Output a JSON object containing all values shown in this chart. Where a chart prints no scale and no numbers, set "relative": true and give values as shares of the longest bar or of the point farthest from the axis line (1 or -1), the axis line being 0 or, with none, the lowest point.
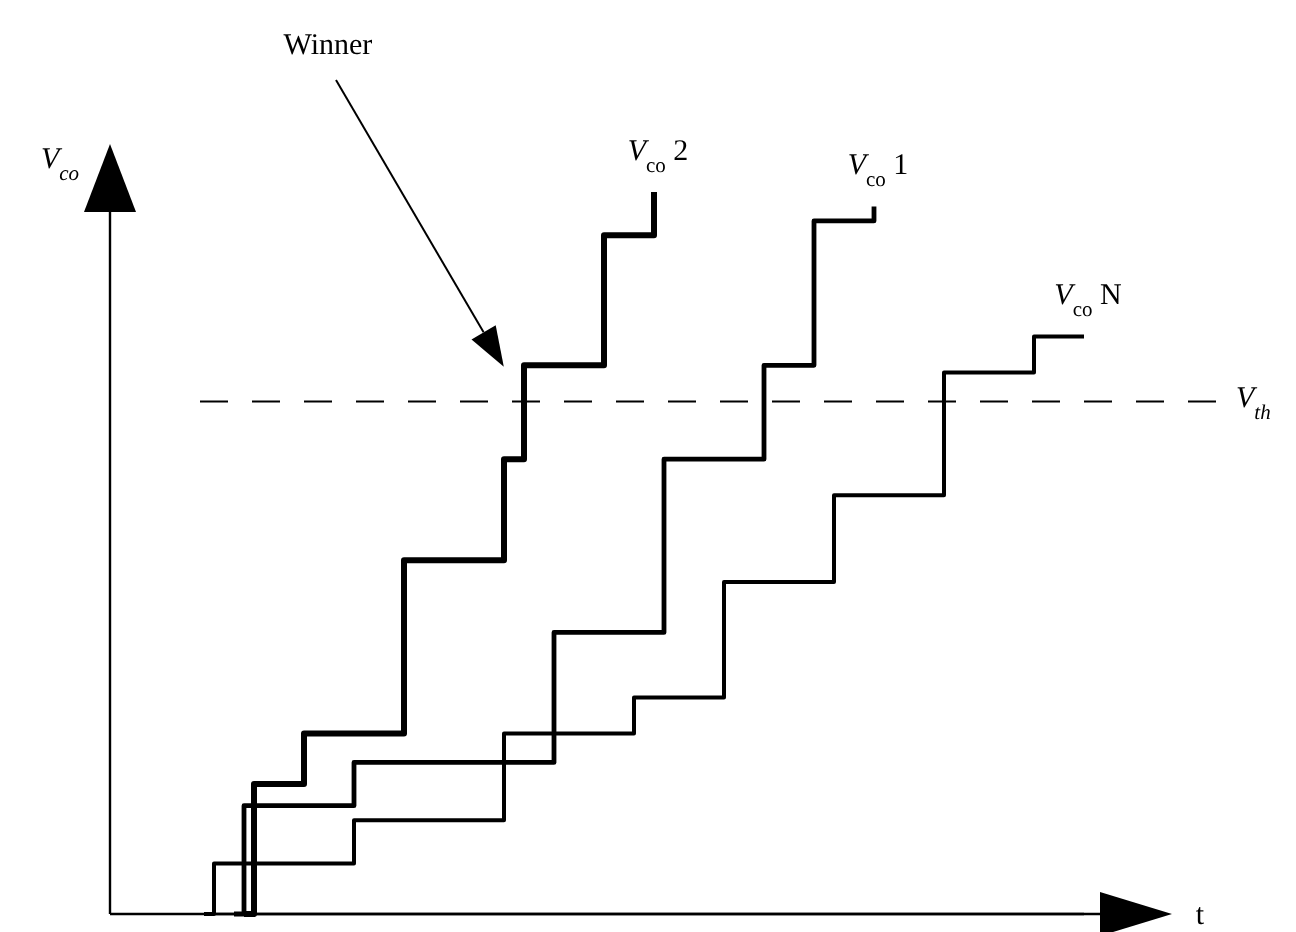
{
  "chart_data": {
    "type": "step",
    "relative": true,
    "xlabel": "t",
    "ylabel": "V$_{co}$",
    "categories": [
      null,
      null,
      null,
      null,
      null,
      null,
      null,
      null,
      null,
      null,
      null,
      null,
      null,
      null,
      null,
      null,
      null,
      null,
      null,
      null,
      null,
      null,
      null,
      null,
      null,
      null,
      null,
      null,
      null,
      null,
      null,
      null,
      null,
      null,
      null,
      null,
      null,
      null,
      null,
      null,
      null,
      null,
      null,
      null,
      null,
      null,
      null,
      null,
      null,
      null,
      null,
      null,
      null,
      null,
      null,
      null,
      null,
      null,
      null,
      null,
      null,
      null,
      null,
      null,
      null,
      null,
      null,
      null,
      null,
      null,
      null,
      null,
      null,
      null,
      null,
      null,
      null,
      null,
      null,
      null,
      null,
      null,
      null,
      null,
      null,
      null,
      null,
      null,
      null
    ],
    "series": [
      {
        "name": "V$_{co}$ 2",
        "color": "#000000",
        "values": [
          null,
          null,
          null,
          null,
          0,
          0.18,
          0.18,
          0.18,
          0.18,
          0.18,
          0.25,
          0.25,
          0.25,
          0.25,
          0.25,
          0.25,
          0.25,
          0.25,
          0.25,
          0.25,
          0.49,
          0.49,
          0.49,
          0.49,
          0.49,
          0.49,
          0.49,
          0.49,
          0.49,
          0.49,
          0.63,
          0.63,
          0.76,
          0.76,
          0.76,
          0.76,
          0.76,
          0.76,
          0.76,
          0.76,
          0.94,
          0.94,
          0.94,
          0.94,
          0.94,
          1,
          null,
          null,
          null,
          null,
          null,
          null,
          null,
          null,
          null,
          null,
          null,
          null,
          null,
          null,
          null,
          null,
          null,
          null,
          null,
          null,
          null,
          null,
          null,
          null,
          null,
          null,
          null,
          null,
          null,
          null,
          null,
          null,
          null,
          null,
          null,
          null,
          null,
          null,
          null,
          null,
          null,
          null,
          null
        ]
      },
      {
        "name": "V$_{co}$ 1",
        "color": "#000000",
        "values": [
          null,
          null,
          null,
          0,
          0.15,
          0.15,
          0.15,
          0.15,
          0.15,
          0.15,
          0.15,
          0.15,
          0.15,
          0.15,
          0.15,
          0.21,
          0.21,
          0.21,
          0.21,
          0.21,
          0.21,
          0.21,
          0.21,
          0.21,
          0.21,
          0.21,
          0.21,
          0.21,
          0.21,
          0.21,
          0.21,
          0.21,
          0.21,
          0.21,
          0.21,
          0.39,
          0.39,
          0.39,
          0.39,
          0.39,
          0.39,
          0.39,
          0.39,
          0.39,
          0.39,
          0.39,
          0.63,
          0.63,
          0.63,
          0.63,
          0.63,
          0.63,
          0.63,
          0.63,
          0.63,
          0.63,
          0.76,
          0.76,
          0.76,
          0.76,
          0.76,
          0.96,
          0.96,
          0.96,
          0.96,
          0.96,
          0.96,
          0.98,
          null,
          null,
          null,
          null,
          null,
          null,
          null,
          null,
          null,
          null,
          null,
          null,
          null,
          null,
          null,
          null,
          null,
          null,
          null,
          null,
          null
        ]
      },
      {
        "name": "V$_{co}$ N",
        "color": "#000000",
        "values": [
          0,
          0.07,
          0.07,
          0.07,
          0.07,
          0.07,
          0.07,
          0.07,
          0.07,
          0.07,
          0.07,
          0.07,
          0.07,
          0.07,
          0.07,
          0.13,
          0.13,
          0.13,
          0.13,
          0.13,
          0.13,
          0.13,
          0.13,
          0.13,
          0.13,
          0.13,
          0.13,
          0.13,
          0.13,
          0.13,
          0.25,
          0.25,
          0.25,
          0.25,
          0.25,
          0.25,
          0.25,
          0.25,
          0.25,
          0.25,
          0.25,
          0.25,
          0.25,
          0.3,
          0.3,
          0.3,
          0.3,
          0.3,
          0.3,
          0.3,
          0.3,
          0.3,
          0.46,
          0.46,
          0.46,
          0.46,
          0.46,
          0.46,
          0.46,
          0.46,
          0.46,
          0.46,
          0.46,
          0.58,
          0.58,
          0.58,
          0.58,
          0.58,
          0.58,
          0.58,
          0.58,
          0.58,
          0.58,
          0.58,
          0.75,
          0.75,
          0.75,
          0.75,
          0.75,
          0.75,
          0.75,
          0.75,
          0.75,
          0.8,
          0.8,
          0.8,
          0.8,
          0.8,
          0.8
        ]
      }
    ],
    "ref_lines": [
      {
        "axis": "y",
        "value": 0.71,
        "label": "V$_{th}$",
        "line_style": "dashed",
        "color": "#000000"
      }
    ],
    "annotations": [
      "Winner"
    ]
  }
}
